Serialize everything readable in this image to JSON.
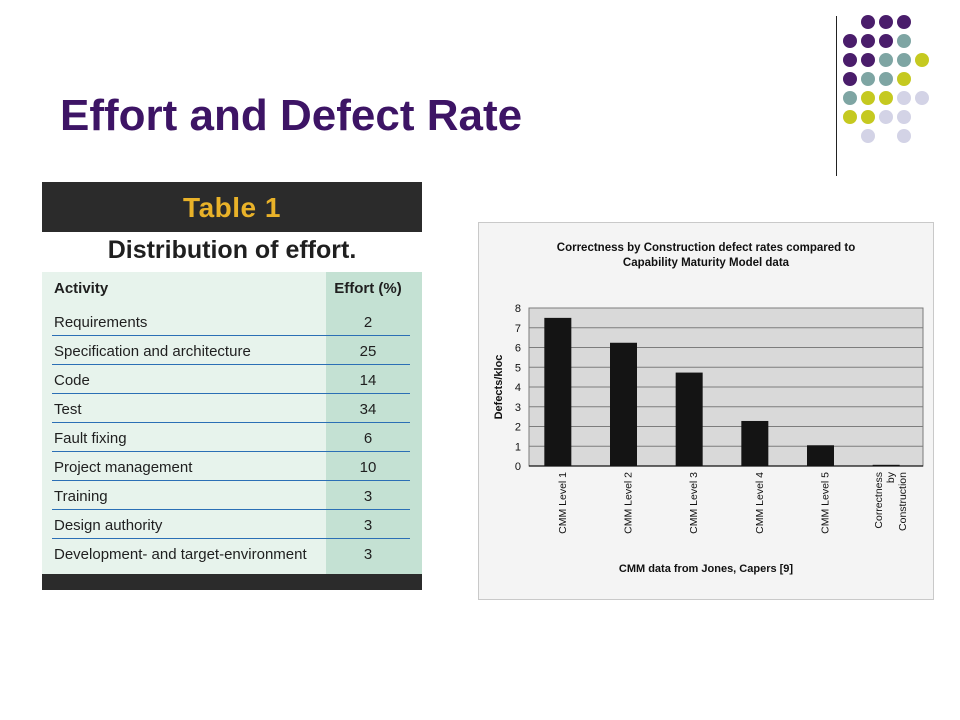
{
  "slide": {
    "title": "Effort and Defect Rate"
  },
  "table": {
    "heading": "Table 1",
    "subheading": "Distribution of effort.",
    "columns": [
      "Activity",
      "Effort (%)"
    ],
    "rows": [
      {
        "activity": "Requirements",
        "effort": "2"
      },
      {
        "activity": "Specification and architecture",
        "effort": "25"
      },
      {
        "activity": "Code",
        "effort": "14"
      },
      {
        "activity": "Test",
        "effort": "34"
      },
      {
        "activity": "Fault fixing",
        "effort": "6"
      },
      {
        "activity": "Project management",
        "effort": "10"
      },
      {
        "activity": "Training",
        "effort": "3"
      },
      {
        "activity": "Design authority",
        "effort": "3"
      },
      {
        "activity": "Development- and target-environment",
        "effort": "3"
      }
    ],
    "colors": {
      "heading": "#e9b229",
      "frame": "#2b2b2b",
      "body": "#e7f3ec",
      "effort_col": "#c4e1d3",
      "rule": "#2b6fb5"
    }
  },
  "chart_data": {
    "type": "bar",
    "title_lines": [
      "Correctness by Construction defect rates compared to",
      "Capability Maturity Model data"
    ],
    "categories": [
      "CMM Level 1",
      "CMM Level 2",
      "CMM Level 3",
      "CMM Level 4",
      "CMM Level 5",
      "Correctness by Construction"
    ],
    "category_labels": [
      [
        "CMM Level 1"
      ],
      [
        "CMM Level 2"
      ],
      [
        "CMM Level 3"
      ],
      [
        "CMM Level 4"
      ],
      [
        "CMM Level 5"
      ],
      [
        "Correctness",
        "by",
        "Construction"
      ]
    ],
    "values": [
      7.5,
      6.24,
      4.73,
      2.28,
      1.05,
      0.06
    ],
    "ylabel": "Defects/kloc",
    "xlabel": "CMM data from Jones, Capers [9]",
    "ylim": [
      0,
      8
    ],
    "yticks": [
      0,
      1,
      2,
      3,
      4,
      5,
      6,
      7,
      8
    ],
    "grid": true,
    "legend": "none",
    "bar_color": "#141414"
  },
  "decor": {
    "dot_colors": {
      "purple": "#4a1d6b",
      "teal": "#7ea5a3",
      "lime": "#c5c920",
      "lavender": "#d3d3e6"
    }
  }
}
